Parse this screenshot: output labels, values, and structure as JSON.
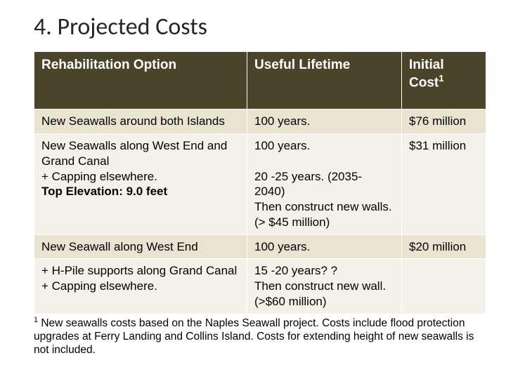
{
  "slide": {
    "title": "4. Projected Costs"
  },
  "table": {
    "columns": [
      "Rehabilitation Option",
      "Useful Lifetime",
      "Initial Cost"
    ],
    "cost_superscript": "1",
    "rows": [
      {
        "option_plain": "New Seawalls around both Islands",
        "option_bold": "",
        "lifetime_top": "100 years.",
        "lifetime_extra": "",
        "cost": "$76 million",
        "band": "a"
      },
      {
        "option_plain": "New Seawalls along West End and Grand Canal\n+ Capping elsewhere.",
        "option_bold": "Top Elevation: 9.0 feet",
        "lifetime_top": "100 years.",
        "lifetime_extra": "20 -25 years.  (2035-\n2040)\nThen construct new walls. (> $45 million)",
        "cost": "$31 million",
        "band": "b"
      },
      {
        "option_plain": "New Seawall along West End",
        "option_bold": "",
        "lifetime_top": "100 years.",
        "lifetime_extra": "",
        "cost": "$20 million",
        "band": "a"
      },
      {
        "option_plain": "+ H-Pile supports along Grand Canal + Capping elsewhere.",
        "option_bold": "",
        "lifetime_top": "15 -20 years? ?\nThen construct new wall. (>$60 million)",
        "lifetime_extra": "",
        "cost": "",
        "band": "b"
      }
    ]
  },
  "footnote": {
    "marker": "1",
    "text": " New seawalls costs based on the Naples Seawall project.  Costs include flood protection upgrades at Ferry Landing and Collins Island.  Costs for extending height of new seawalls is not included."
  },
  "colors": {
    "header_bg": "#4a452a",
    "band_a": "#e8e4d0",
    "band_b": "#f4f2e8",
    "text": "#000000",
    "title": "#262626"
  },
  "typography": {
    "title_fontsize": 34,
    "header_fontsize": 19,
    "cell_fontsize": 17,
    "footnote_fontsize": 15.5
  }
}
